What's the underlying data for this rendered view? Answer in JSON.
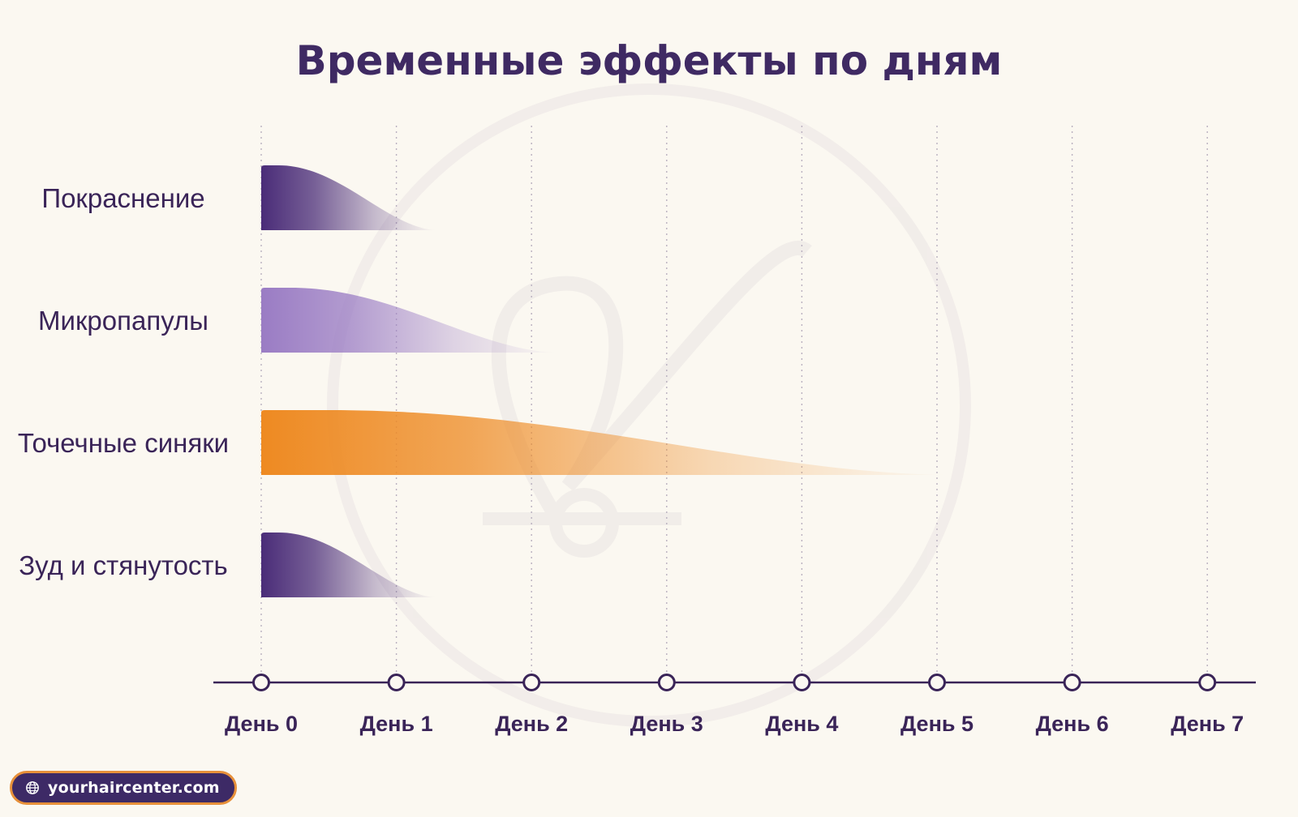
{
  "title": "Временные эффекты по дням",
  "chart_data": {
    "type": "bar",
    "title": "Временные эффекты по дням",
    "orientation": "horizontal",
    "xlabel": "",
    "ylabel": "",
    "x_ticks": [
      "День 0",
      "День 1",
      "День 2",
      "День 3",
      "День 4",
      "День 5",
      "День 6",
      "День 7"
    ],
    "xlim": [
      0,
      7
    ],
    "grid": true,
    "categories": [
      "Покраснение",
      "Микропапулы",
      "Точечные синяки",
      "Зуд и стянутость"
    ],
    "series": [
      {
        "values": [
          1.3,
          2.2,
          5.1,
          1.3
        ]
      }
    ],
    "bar_colors": [
      "#4a2c78",
      "#9a7cc4",
      "#ee8a22",
      "#4a2c78"
    ]
  },
  "colors": {
    "background": "#fbf8f1",
    "title": "#3f2a63",
    "axis": "#3a2458",
    "badge_bg": "#3d2a66",
    "badge_border": "#e7903a"
  },
  "badge": {
    "icon": "globe-icon",
    "text": "yourhaircenter.com"
  }
}
